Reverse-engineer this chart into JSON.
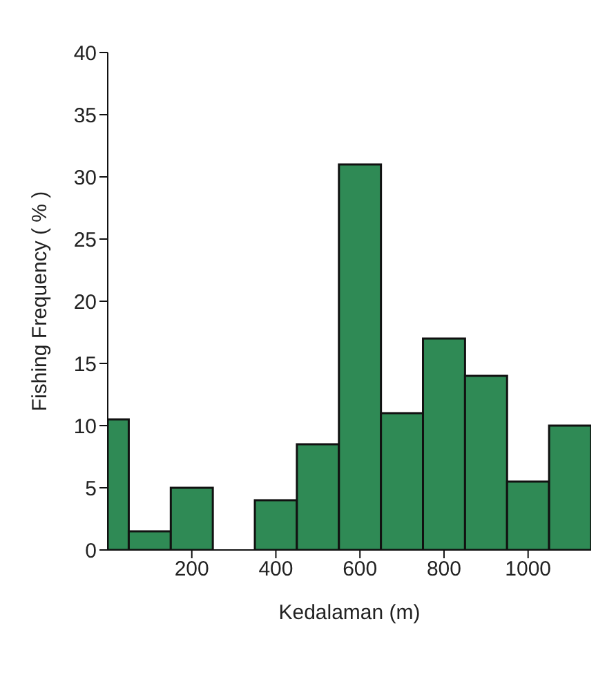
{
  "chart_data": {
    "type": "histogram",
    "xlabel": "Kedalaman (m)",
    "ylabel": "Fishing Frequency ( % )",
    "bins": [
      0,
      50,
      150,
      250,
      350,
      450,
      550,
      650,
      750,
      850,
      950,
      1050,
      1150
    ],
    "values": [
      10.5,
      1.5,
      5,
      0,
      4,
      8.5,
      31,
      11,
      17,
      14,
      5.5,
      10
    ],
    "color": "#2f8a55",
    "xlim": [
      0,
      1150
    ],
    "xticks": [
      200,
      400,
      600,
      800,
      1000
    ],
    "ylim": [
      0,
      40
    ],
    "yticks": [
      0,
      5,
      10,
      15,
      20,
      25,
      30,
      35,
      40
    ],
    "grid": false
  }
}
